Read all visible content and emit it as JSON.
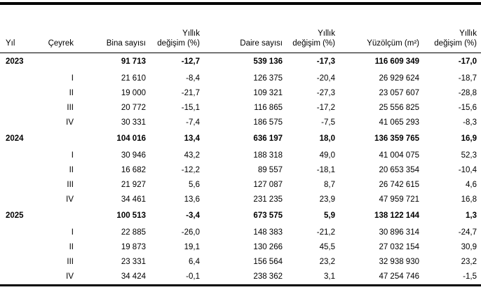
{
  "header": {
    "cols": [
      {
        "top": "",
        "bottom": "Yıl"
      },
      {
        "top": "",
        "bottom": "Çeyrek"
      },
      {
        "top": "",
        "bottom": "Bina sayısı"
      },
      {
        "top": "Yıllık",
        "bottom": "değişim (%)"
      },
      {
        "top": "",
        "bottom": "Daire sayısı"
      },
      {
        "top": "Yıllık",
        "bottom": "değişim (%)"
      },
      {
        "top": "",
        "bottom": "Yüzölçüm (m²)"
      },
      {
        "top": "Yıllık",
        "bottom": "değişim (%)"
      }
    ]
  },
  "chart_data": {
    "type": "table",
    "columns": [
      "Yıl",
      "Çeyrek",
      "Bina sayısı",
      "Yıllık değişim (%)",
      "Daire sayısı",
      "Yıllık değişim (%)",
      "Yüzölçüm (m²)",
      "Yıllık değişim (%)"
    ],
    "rows": [
      [
        "2023",
        "",
        "91 713",
        "-12,7",
        "539 136",
        "-17,3",
        "116 609 349",
        "-17,0"
      ],
      [
        "",
        "I",
        "21 610",
        "-8,4",
        "126 375",
        "-20,4",
        "26 929 624",
        "-18,7"
      ],
      [
        "",
        "II",
        "19 000",
        "-21,7",
        "109 321",
        "-27,3",
        "23 057 607",
        "-28,8"
      ],
      [
        "",
        "III",
        "20 772",
        "-15,1",
        "116 865",
        "-17,2",
        "25 556 825",
        "-15,6"
      ],
      [
        "",
        "IV",
        "30 331",
        "-7,4",
        "186 575",
        "-7,5",
        "41 065 293",
        "-8,3"
      ],
      [
        "2024",
        "",
        "104 016",
        "13,4",
        "636 197",
        "18,0",
        "136 359 765",
        "16,9"
      ],
      [
        "",
        "I",
        "30 946",
        "43,2",
        "188 318",
        "49,0",
        "41 004 075",
        "52,3"
      ],
      [
        "",
        "II",
        "16 682",
        "-12,2",
        "89 557",
        "-18,1",
        "20 653 354",
        "-10,4"
      ],
      [
        "",
        "III",
        "21 927",
        "5,6",
        "127 087",
        "8,7",
        "26 742 615",
        "4,6"
      ],
      [
        "",
        "IV",
        "34 461",
        "13,6",
        "231 235",
        "23,9",
        "47 959 721",
        "16,8"
      ],
      [
        "2025",
        "",
        "100 513",
        "-3,4",
        "673 575",
        "5,9",
        "138 122 144",
        "1,3"
      ],
      [
        "",
        "I",
        "22 885",
        "-26,0",
        "148 383",
        "-21,2",
        "30 896 314",
        "-24,7"
      ],
      [
        "",
        "II",
        "19 873",
        "19,1",
        "130 266",
        "45,5",
        "27 032 154",
        "30,9"
      ],
      [
        "",
        "III",
        "23 331",
        "6,4",
        "156 564",
        "23,2",
        "32 938 930",
        "23,2"
      ],
      [
        "",
        "IV",
        "34 424",
        "-0,1",
        "238 362",
        "3,1",
        "47 254 746",
        "-1,5"
      ]
    ]
  }
}
